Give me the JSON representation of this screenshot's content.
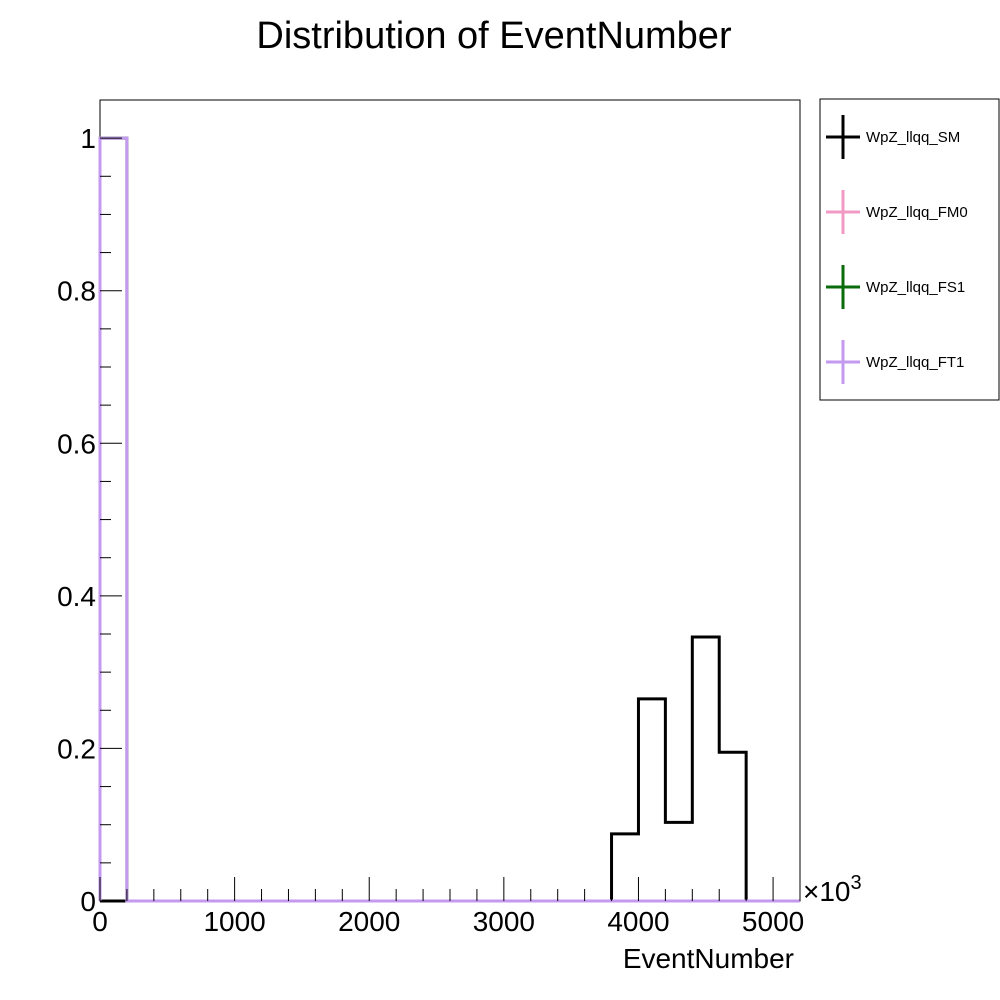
{
  "chart_data": {
    "type": "histogram",
    "title": "Distribution of EventNumber",
    "xlabel": "EventNumber",
    "ylabel": "",
    "x_multiplier": "×10",
    "x_multiplier_exp": "3",
    "xlim": [
      0,
      5200
    ],
    "ylim": [
      0,
      1.05
    ],
    "x_ticks": [
      0,
      1000,
      2000,
      3000,
      4000,
      5000
    ],
    "x_tick_labels": [
      "0",
      "1000",
      "2000",
      "3000",
      "4000",
      "5000"
    ],
    "y_ticks": [
      0,
      0.2,
      0.4,
      0.6,
      0.8,
      1
    ],
    "y_tick_labels": [
      "0",
      "0.2",
      "0.4",
      "0.6",
      "0.8",
      "1"
    ],
    "bin_edges": [
      0,
      200,
      400,
      600,
      800,
      1000,
      1200,
      1400,
      1600,
      1800,
      2000,
      2200,
      2400,
      2600,
      2800,
      3000,
      3200,
      3400,
      3600,
      3800,
      4000,
      4200,
      4400,
      4600,
      4800,
      5000,
      5200
    ],
    "grid": false,
    "legend_position": "right",
    "series": [
      {
        "name": "WpZ_llqq_SM",
        "color": "#000000",
        "values": [
          0,
          0,
          0,
          0,
          0,
          0,
          0,
          0,
          0,
          0,
          0,
          0,
          0,
          0,
          0,
          0,
          0,
          0,
          0,
          0.088,
          0.265,
          0.103,
          0.346,
          0.195,
          0,
          0
        ]
      },
      {
        "name": "WpZ_llqq_FM0",
        "color": "#f29ac4",
        "values": [
          1,
          0,
          0,
          0,
          0,
          0,
          0,
          0,
          0,
          0,
          0,
          0,
          0,
          0,
          0,
          0,
          0,
          0,
          0,
          0,
          0,
          0,
          0,
          0,
          0,
          0
        ]
      },
      {
        "name": "WpZ_llqq_FS1",
        "color": "#0a6b0a",
        "values": [
          1,
          0,
          0,
          0,
          0,
          0,
          0,
          0,
          0,
          0,
          0,
          0,
          0,
          0,
          0,
          0,
          0,
          0,
          0,
          0,
          0,
          0,
          0,
          0,
          0,
          0
        ]
      },
      {
        "name": "WpZ_llqq_FT1",
        "color": "#c39af0",
        "values": [
          1,
          0,
          0,
          0,
          0,
          0,
          0,
          0,
          0,
          0,
          0,
          0,
          0,
          0,
          0,
          0,
          0,
          0,
          0,
          0,
          0,
          0,
          0,
          0,
          0,
          0
        ]
      }
    ]
  }
}
